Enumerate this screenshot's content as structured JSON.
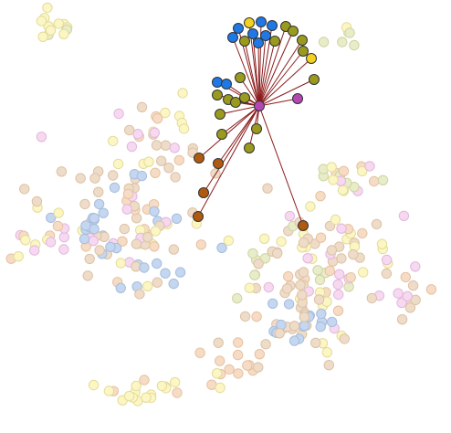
{
  "graph": {
    "hub": {
      "color": "#b347b3"
    },
    "colors": {
      "edge": "#8b1a1a",
      "blue": "#1e78e6",
      "yellow": "#f2d21e",
      "olive": "#9a9a1e",
      "brown": "#b05a10",
      "purple": "#b347b3",
      "bg_yellow": "#fbf6c4",
      "bg_peach": "#f6dcc4",
      "bg_tan": "#efdcc8",
      "bg_blue": "#c4d6f0",
      "bg_pink": "#f6d8f0",
      "bg_olive": "#e8ecc8"
    }
  }
}
